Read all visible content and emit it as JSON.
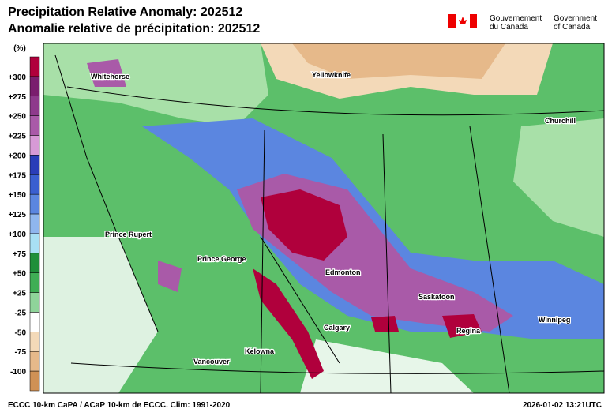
{
  "header": {
    "title_en": "Precipitation Relative Anomaly: 202512",
    "title_fr": "Anomalie relative de précipitation: 202512",
    "gov_fr": [
      "Gouvernement",
      "du Canada"
    ],
    "gov_en": [
      "Government",
      "of Canada"
    ]
  },
  "legend": {
    "unit": "(%)",
    "labels": [
      "+300",
      "+275",
      "+250",
      "+225",
      "+200",
      "+175",
      "+150",
      "+125",
      "+100",
      "+75",
      "+50",
      "+25",
      "-25",
      "-50",
      "-75",
      "-100"
    ],
    "colors": [
      "#b0003c",
      "#7a1e6e",
      "#8e3a8c",
      "#a95aa8",
      "#d79ad6",
      "#2a3db8",
      "#3a5fd0",
      "#5b86e0",
      "#8fb6ee",
      "#a8e0f4",
      "#1f8f3a",
      "#3fae55",
      "#8fd49a",
      "#ffffff",
      "#f3d9b8",
      "#e6b98a",
      "#cf9155"
    ]
  },
  "map": {
    "cities": [
      "Whitehorse",
      "Yellowknife",
      "Churchill",
      "Prince Rupert",
      "Prince George",
      "Edmonton",
      "Saskatoon",
      "Calgary",
      "Regina",
      "Winnipeg",
      "Kelowna",
      "Vancouver"
    ]
  },
  "footer": {
    "left": "ECCC 10-km CaPA / ACaP 10-km de ECCC. Clim: 1991-2020",
    "right": "2026-01-02 13:21UTC"
  }
}
